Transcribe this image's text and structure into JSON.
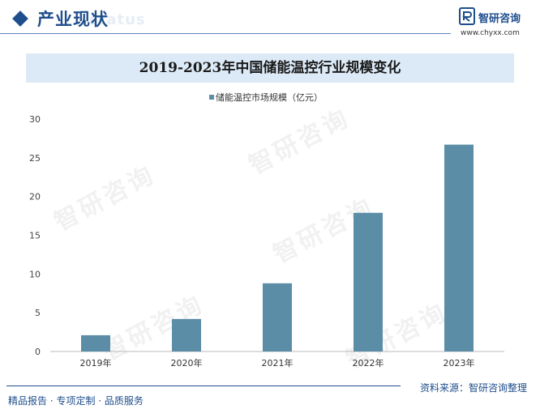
{
  "header": {
    "section_title": "产业现状",
    "section_ghost": "status"
  },
  "brand": {
    "name": "智研咨询",
    "url": "www.chyxx.com",
    "watermark": "智研咨询"
  },
  "colors": {
    "accent": "#1f4e8c",
    "bar": "#5b8da6",
    "title_band": "#dceaf7"
  },
  "chart_data": {
    "type": "bar",
    "title": "2019-2023年中国储能温控行业规模变化",
    "categories": [
      "2019年",
      "2020年",
      "2021年",
      "2022年",
      "2023年"
    ],
    "series": [
      {
        "name": "储能温控市场规模（亿元）",
        "values": [
          2.1,
          4.2,
          8.8,
          17.9,
          26.7
        ]
      }
    ],
    "ylim": [
      0,
      30
    ],
    "yticks": [
      0,
      5,
      10,
      15,
      20,
      25,
      30
    ],
    "xlabel": "",
    "ylabel": "",
    "legend": "top-center",
    "grid": false
  },
  "footer": {
    "source": "资料来源：智研咨询整理",
    "slogan": "精品报告 · 专项定制 · 品质服务"
  }
}
